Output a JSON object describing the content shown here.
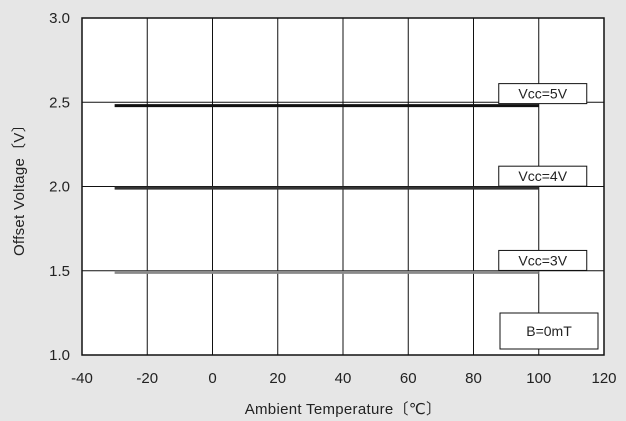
{
  "chart_data": {
    "type": "line",
    "title": "",
    "xlabel": "Ambient Temperature〔℃〕",
    "ylabel": "Offset Voltage〔V〕",
    "xlim": [
      -40,
      120
    ],
    "ylim": [
      1.0,
      3.0
    ],
    "x_ticks": [
      "-40",
      "-20",
      "0",
      "20",
      "40",
      "60",
      "80",
      "100",
      "120"
    ],
    "y_ticks": [
      "1.0",
      "1.5",
      "2.0",
      "2.5",
      "3.0"
    ],
    "grid": true,
    "background": "#ffffff",
    "series": [
      {
        "name": "Vcc=5V",
        "x": [
          -30,
          100
        ],
        "y": [
          2.48,
          2.48
        ],
        "color": "#111111",
        "width": 3
      },
      {
        "name": "Vcc=4V",
        "x": [
          -30,
          100
        ],
        "y": [
          1.99,
          1.99
        ],
        "color": "#333333",
        "width": 3
      },
      {
        "name": "Vcc=3V",
        "x": [
          -30,
          100
        ],
        "y": [
          1.49,
          1.49
        ],
        "color": "#8a8a8a",
        "width": 3
      }
    ],
    "condition_label": "B=0mT"
  }
}
